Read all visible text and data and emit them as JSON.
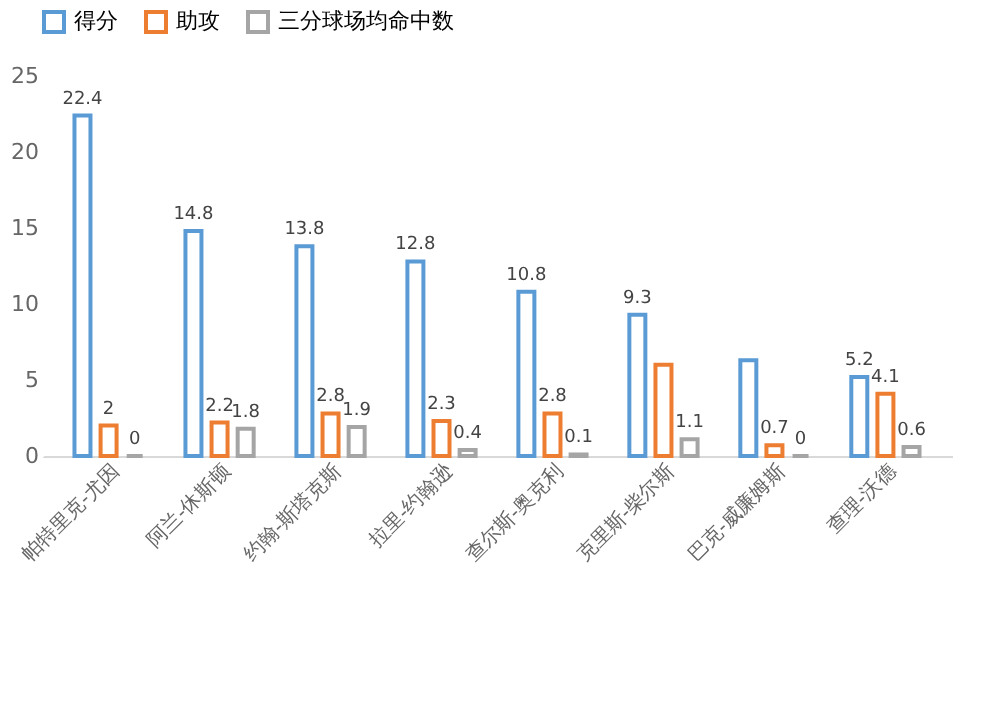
{
  "chart_data": {
    "type": "bar",
    "categories": [
      "帕特里克-尤因",
      "阿兰-休斯顿",
      "约翰-斯塔克斯",
      "拉里-约翰逊",
      "查尔斯-奥克利",
      "克里斯-柴尔斯",
      "巴克-威廉姆斯",
      "查理-沃德"
    ],
    "series": [
      {
        "name": "得分",
        "color": "#5b9bd5",
        "values": [
          22.4,
          14.8,
          13.8,
          12.8,
          10.8,
          9.3,
          6.3,
          5.2
        ],
        "value_labels": [
          "22.4",
          "14.8",
          "13.8",
          "12.8",
          "10.8",
          "9.3",
          null,
          "5.2"
        ]
      },
      {
        "name": "助攻",
        "color": "#ed7d31",
        "values": [
          2,
          2.2,
          2.8,
          2.3,
          2.8,
          6.0,
          0.7,
          4.1
        ],
        "value_labels": [
          "2",
          "2.2",
          "2.8",
          "2.3",
          "2.8",
          null,
          "0.7",
          "4.1"
        ]
      },
      {
        "name": "三分球场均命中数",
        "color": "#a5a5a5",
        "values": [
          0,
          1.8,
          1.9,
          0.4,
          0.1,
          1.1,
          0,
          0.6
        ],
        "value_labels": [
          "0",
          "1.8",
          "1.9",
          "0.4",
          "0.1",
          "1.1",
          "0",
          "0.6"
        ]
      }
    ],
    "ylim": [
      0,
      25
    ],
    "yticks": [
      0,
      5,
      10,
      15,
      20,
      25
    ],
    "grid": false,
    "legend": "top"
  }
}
